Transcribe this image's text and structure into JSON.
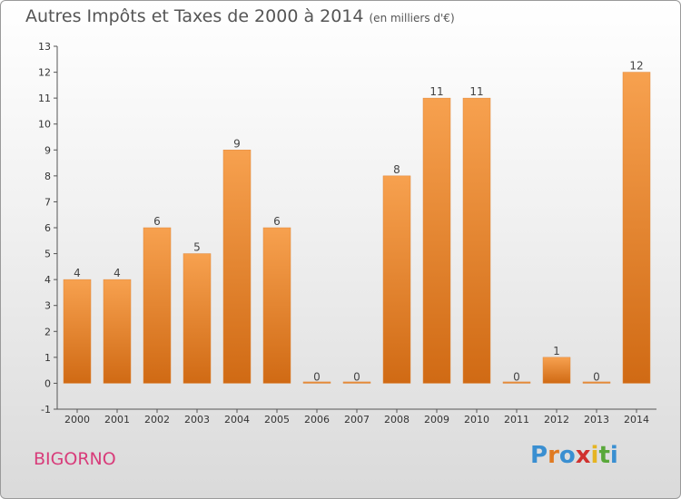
{
  "title": "Autres Impôts et Taxes de 2000 à 2014",
  "unit": "(en milliers d'€)",
  "commune": "BIGORNO",
  "logo": {
    "letters": [
      "P",
      "r",
      "o",
      "x",
      "i",
      "t",
      "i"
    ],
    "colors": [
      "#3a8fd1",
      "#e07a22",
      "#3a8fd1",
      "#d0322f",
      "#e6b422",
      "#59a83a",
      "#3a8fd1"
    ]
  },
  "colors": {
    "bar_light": "#f7a14f",
    "bar_dark": "#d06a14",
    "commune": "#d83c7a"
  },
  "chart_data": {
    "type": "bar",
    "title": "Autres Impôts et Taxes de 2000 à 2014",
    "xlabel": "",
    "ylabel": "",
    "categories": [
      "2000",
      "2001",
      "2002",
      "2003",
      "2004",
      "2005",
      "2006",
      "2007",
      "2008",
      "2009",
      "2010",
      "2011",
      "2012",
      "2013",
      "2014"
    ],
    "values": [
      4,
      4,
      6,
      5,
      9,
      6,
      0,
      0,
      8,
      11,
      11,
      0,
      1,
      0,
      12
    ],
    "ylim": [
      -1,
      13
    ],
    "yticks": [
      -1,
      0,
      1,
      2,
      3,
      4,
      5,
      6,
      7,
      8,
      9,
      10,
      11,
      12,
      13
    ],
    "grid": false
  }
}
